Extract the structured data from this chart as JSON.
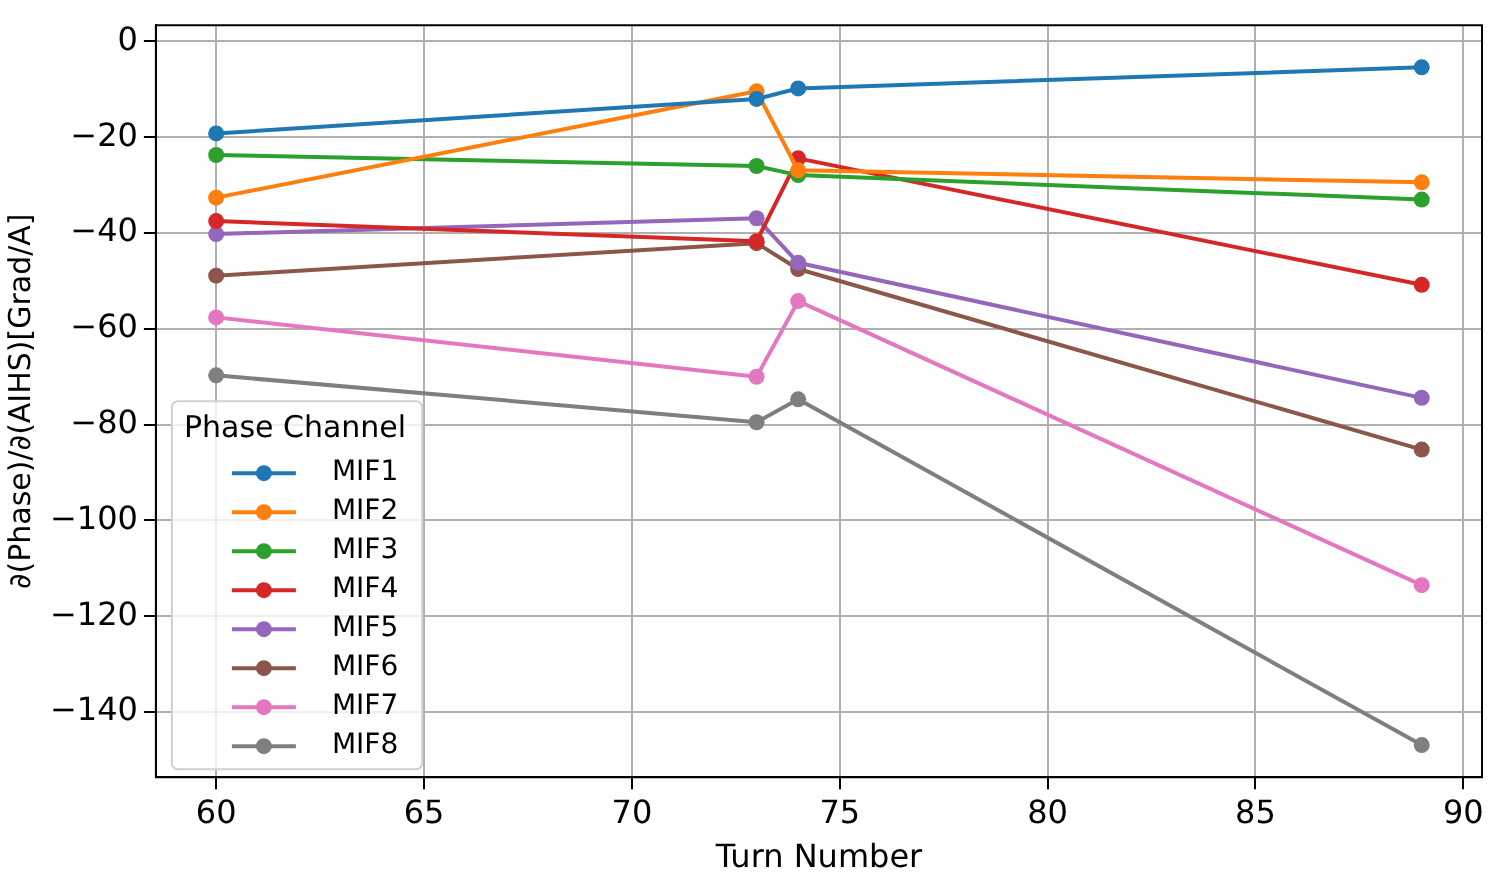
{
  "chart_data": {
    "type": "line",
    "xlabel": "Turn Number",
    "ylabel": "∂(Phase)/∂(AIHS)[Grad/A]",
    "legend_title": "Phase Channel",
    "legend": "bottom left",
    "grid": true,
    "marker": "circle",
    "line_style": "solid",
    "x": [
      60,
      73,
      74,
      89
    ],
    "xlim": [
      58.55,
      90.45
    ],
    "xticks": [
      60,
      65,
      70,
      75,
      80,
      85,
      90
    ],
    "ylim": [
      -153.6,
      3.4
    ],
    "yticks": [
      0,
      -20,
      -40,
      -60,
      -80,
      -100,
      -120,
      -140
    ],
    "series": [
      {
        "name": "MIF1",
        "color": "#1f77b4",
        "values": [
          -19.2,
          -12.0,
          -9.8,
          -5.4
        ]
      },
      {
        "name": "MIF2",
        "color": "#ff7f0e",
        "values": [
          -32.6,
          -10.4,
          -26.9,
          -29.4
        ]
      },
      {
        "name": "MIF3",
        "color": "#2ca02c",
        "values": [
          -23.7,
          -26.0,
          -27.9,
          -33.0
        ]
      },
      {
        "name": "MIF4",
        "color": "#d62728",
        "values": [
          -37.5,
          -41.7,
          -24.4,
          -50.8
        ]
      },
      {
        "name": "MIF5",
        "color": "#9467bd",
        "values": [
          -40.2,
          -36.9,
          -46.2,
          -74.4
        ]
      },
      {
        "name": "MIF6",
        "color": "#8c564b",
        "values": [
          -48.9,
          -42.1,
          -47.5,
          -85.2
        ]
      },
      {
        "name": "MIF7",
        "color": "#e377c2",
        "values": [
          -57.6,
          -70.0,
          -54.2,
          -113.5
        ]
      },
      {
        "name": "MIF8",
        "color": "#7f7f7f",
        "values": [
          -69.7,
          -79.5,
          -74.7,
          -146.9
        ]
      }
    ]
  }
}
